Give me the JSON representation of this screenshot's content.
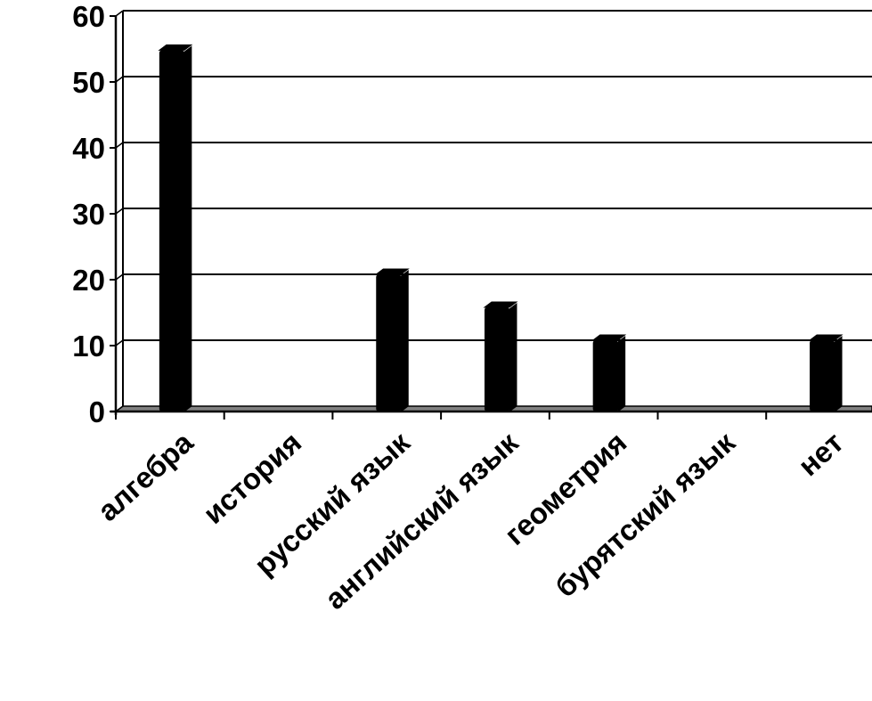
{
  "chart_data": {
    "type": "bar",
    "categories": [
      "алгебра",
      "история",
      "русский язык",
      "английский язык",
      "геометрия",
      "бурятский язык",
      "нет"
    ],
    "values": [
      54,
      0,
      20,
      15,
      10,
      0,
      10
    ],
    "title": "",
    "xlabel": "",
    "ylabel": "",
    "ylim": [
      0,
      60
    ],
    "yticks": [
      "0",
      "10",
      "20",
      "30",
      "40",
      "50",
      "60"
    ],
    "grid": true,
    "legend": "none",
    "bar_color": "#000000",
    "floor_color": "#808080"
  }
}
